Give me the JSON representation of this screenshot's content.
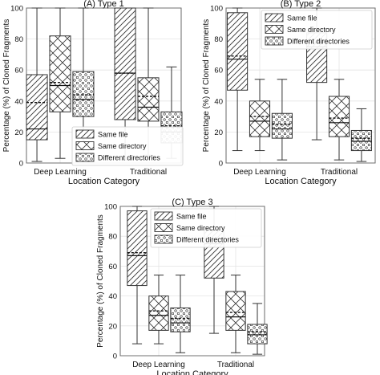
{
  "chart_data": [
    {
      "type": "box",
      "title": "(A) Type 1",
      "xlabel": "Location Category",
      "ylabel": "Percentage (%) of Cloned Fragments",
      "categories": [
        "Deep Learning",
        "Traditional"
      ],
      "ylim": [
        0,
        100
      ],
      "yticks": [
        0,
        20,
        40,
        60,
        80,
        100
      ],
      "grid": true,
      "legend_placement": "bottom-right",
      "series": [
        {
          "name": "Same file",
          "pattern": "hatch",
          "boxes": [
            {
              "min": 1,
              "q1": 15,
              "median": 22,
              "mean": 39,
              "q3": 57,
              "max": 100
            },
            {
              "min": 2,
              "q1": 28,
              "median": 58,
              "mean": 58,
              "q3": 100,
              "max": 100
            }
          ]
        },
        {
          "name": "Same directory",
          "pattern": "cross",
          "boxes": [
            {
              "min": 3,
              "q1": 33,
              "median": 50,
              "mean": 52,
              "q3": 82,
              "max": 100
            },
            {
              "min": 5,
              "q1": 27,
              "median": 36,
              "mean": 43,
              "q3": 55,
              "max": 100
            }
          ]
        },
        {
          "name": "Different directories",
          "pattern": "dots",
          "boxes": [
            {
              "min": 2,
              "q1": 30,
              "median": 41,
              "mean": 44,
              "q3": 59,
              "max": 100
            },
            {
              "min": 3,
              "q1": 13,
              "median": 20,
              "mean": 24,
              "q3": 33,
              "max": 62
            }
          ]
        }
      ]
    },
    {
      "type": "box",
      "title": "(B) Type 2",
      "xlabel": "Location Category",
      "ylabel": "Percentage (%) of Cloned Fragments",
      "categories": [
        "Deep Learning",
        "Traditional"
      ],
      "ylim": [
        0,
        100
      ],
      "yticks": [
        0,
        20,
        40,
        60,
        80,
        100
      ],
      "grid": true,
      "legend_placement": "top-right",
      "series": [
        {
          "name": "Same file",
          "pattern": "hatch",
          "boxes": [
            {
              "min": 8,
              "q1": 47,
              "median": 67,
              "mean": 69,
              "q3": 97,
              "max": 100
            },
            {
              "min": 15,
              "q1": 52,
              "median": 75,
              "mean": 78,
              "q3": 84,
              "max": 100
            }
          ]
        },
        {
          "name": "Same directory",
          "pattern": "cross",
          "boxes": [
            {
              "min": 8,
              "q1": 17,
              "median": 27,
              "mean": 30,
              "q3": 40,
              "max": 54
            },
            {
              "min": 2,
              "q1": 17,
              "median": 26,
              "mean": 29,
              "q3": 43,
              "max": 54
            }
          ]
        },
        {
          "name": "Different directories",
          "pattern": "dots",
          "boxes": [
            {
              "min": 2,
              "q1": 16,
              "median": 22,
              "mean": 25,
              "q3": 32,
              "max": 54
            },
            {
              "min": 1,
              "q1": 8,
              "median": 14,
              "mean": 16,
              "q3": 21,
              "max": 35
            }
          ]
        }
      ]
    },
    {
      "type": "box",
      "title": "(C) Type 3",
      "xlabel": "Location Category",
      "ylabel": "Percentage (%) of Cloned Fragments",
      "categories": [
        "Deep Learning",
        "Traditional"
      ],
      "ylim": [
        0,
        100
      ],
      "yticks": [
        0,
        20,
        40,
        60,
        80,
        100
      ],
      "grid": true,
      "legend_placement": "top-right",
      "series": [
        {
          "name": "Same file",
          "pattern": "hatch",
          "boxes": [
            {
              "min": 8,
              "q1": 47,
              "median": 67,
              "mean": 69,
              "q3": 97,
              "max": 100
            },
            {
              "min": 15,
              "q1": 52,
              "median": 75,
              "mean": 78,
              "q3": 84,
              "max": 100
            }
          ]
        },
        {
          "name": "Same directory",
          "pattern": "cross",
          "boxes": [
            {
              "min": 8,
              "q1": 17,
              "median": 27,
              "mean": 30,
              "q3": 40,
              "max": 54
            },
            {
              "min": 2,
              "q1": 17,
              "median": 26,
              "mean": 29,
              "q3": 43,
              "max": 54
            }
          ]
        },
        {
          "name": "Different directories",
          "pattern": "dots",
          "boxes": [
            {
              "min": 2,
              "q1": 16,
              "median": 22,
              "mean": 25,
              "q3": 32,
              "max": 54
            },
            {
              "min": 1,
              "q1": 8,
              "median": 14,
              "mean": 16,
              "q3": 21,
              "max": 35
            }
          ]
        }
      ]
    }
  ]
}
